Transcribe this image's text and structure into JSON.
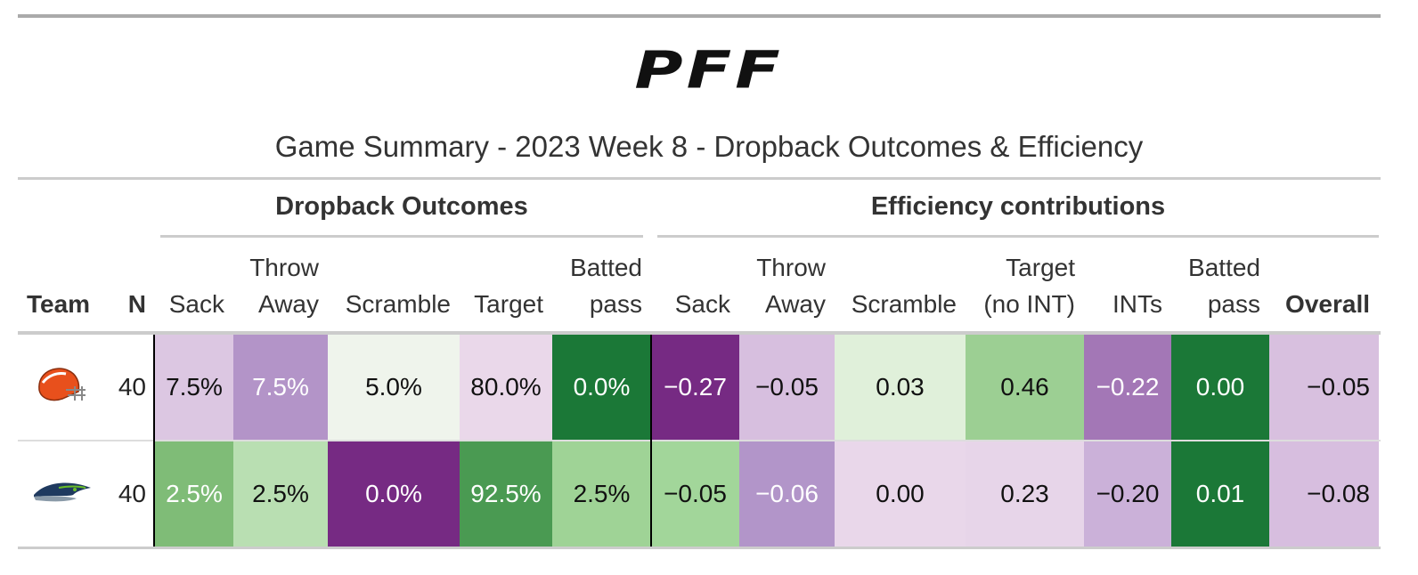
{
  "logo": "PFF",
  "title": "Game Summary - 2023 Week 8 - Dropback Outcomes & Efficiency",
  "groups": [
    "Dropback Outcomes",
    "Efficiency contributions"
  ],
  "columns": [
    "Team",
    "N",
    "Sack",
    "Throw Away",
    "Scramble",
    "Target",
    "Batted pass",
    "Sack",
    "Throw Away",
    "Scramble",
    "Target (no INT)",
    "INTs",
    "Batted pass",
    "Overall"
  ],
  "rows": [
    {
      "n": "40",
      "values": [
        "7.5%",
        "7.5%",
        "5.0%",
        "80.0%",
        "0.0%",
        "−0.27",
        "−0.05",
        "0.03",
        "0.46",
        "−0.22",
        "0.00",
        "−0.05"
      ],
      "colors": [
        "#dcc7e2",
        "#b394c8",
        "#eff4ec",
        "#ead8ea",
        "#1b7837",
        "#762a83",
        "#d7bfdf",
        "#e0f0da",
        "#9ccf93",
        "#a377b6",
        "#1b7837",
        "#d8c0df"
      ]
    },
    {
      "n": "40",
      "values": [
        "2.5%",
        "2.5%",
        "0.0%",
        "92.5%",
        "2.5%",
        "−0.05",
        "−0.06",
        "0.00",
        "0.23",
        "−0.20",
        "0.01",
        "−0.08"
      ],
      "colors": [
        "#7fbc77",
        "#b9dfb2",
        "#762a83",
        "#4a9a52",
        "#9fd396",
        "#a2d69a",
        "#b295c9",
        "#e9d7ea",
        "#e7d5e9",
        "#cbb1d9",
        "#1b7837",
        "#d7bedf"
      ]
    }
  ]
}
